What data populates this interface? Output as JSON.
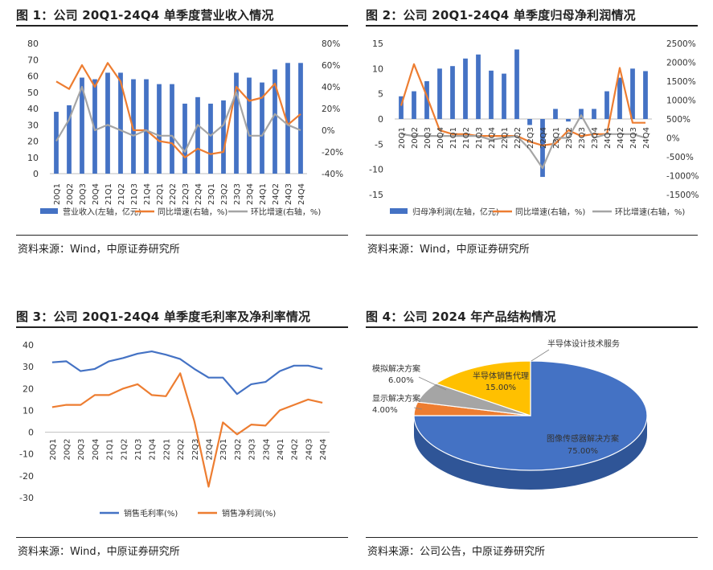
{
  "colors": {
    "blue": "#4472C4",
    "orange": "#ED7D31",
    "gray": "#A5A5A5",
    "yellow": "#FFC000"
  },
  "source_wind": "资料来源：Wind，中原证券研究所",
  "source_announce": "资料来源：公司公告，中原证券研究所",
  "chart_data": [
    {
      "type": "bar",
      "title": "图 1：公司 20Q1-24Q4 单季度营业收入情况",
      "categories": [
        "20Q1",
        "20Q2",
        "20Q3",
        "20Q4",
        "21Q1",
        "21Q2",
        "21Q3",
        "21Q4",
        "22Q1",
        "22Q2",
        "22Q3",
        "22Q4",
        "23Q1",
        "23Q2",
        "23Q3",
        "23Q4",
        "24Q1",
        "24Q2",
        "24Q3",
        "24Q4"
      ],
      "y_ticks": [
        "0",
        "10",
        "20",
        "30",
        "40",
        "50",
        "60",
        "70",
        "80"
      ],
      "y2_ticks": [
        "-40%",
        "-20%",
        "0%",
        "20%",
        "40%",
        "60%",
        "80%"
      ],
      "ylim": [
        0,
        80
      ],
      "y2lim": [
        -40,
        80
      ],
      "series": [
        {
          "name": "营业收入(左轴，亿元)",
          "axis": "left",
          "kind": "bar",
          "values": [
            38,
            42,
            59,
            58,
            62,
            62,
            58,
            58,
            55,
            55,
            43,
            47,
            43,
            45,
            62,
            59,
            56,
            64,
            68,
            68
          ]
        },
        {
          "name": "同比增速(右轴，%)",
          "axis": "right",
          "kind": "line",
          "values": [
            45,
            38,
            60,
            40,
            62,
            45,
            0,
            0,
            -10,
            -12,
            -25,
            -17,
            -22,
            -20,
            40,
            27,
            30,
            43,
            5,
            15
          ]
        },
        {
          "name": "环比增速(右轴，%)",
          "axis": "right",
          "kind": "line",
          "values": [
            -10,
            10,
            40,
            0,
            5,
            0,
            -5,
            0,
            -5,
            -5,
            -20,
            5,
            -5,
            5,
            35,
            -5,
            -5,
            15,
            5,
            0
          ]
        }
      ]
    },
    {
      "type": "bar",
      "title": "图 2：公司 20Q1-24Q4 单季度归母净利润情况",
      "categories": [
        "20Q1",
        "20Q2",
        "20Q3",
        "20Q4",
        "21Q1",
        "21Q2",
        "21Q3",
        "21Q4",
        "22Q1",
        "22Q2",
        "22Q3",
        "22Q4",
        "23Q1",
        "23Q2",
        "23Q3",
        "23Q4",
        "24Q1",
        "24Q2",
        "24Q3",
        "24Q4"
      ],
      "y_ticks": [
        "-15",
        "-10",
        "-5",
        "0",
        "5",
        "10",
        "15"
      ],
      "y2_ticks": [
        "-1500%",
        "-1000%",
        "-500%",
        "0%",
        "500%",
        "1000%",
        "1500%",
        "2000%",
        "2500%"
      ],
      "ylim": [
        -15,
        15
      ],
      "y2lim": [
        -1500,
        2500
      ],
      "series": [
        {
          "name": "归母净利润(左轴，亿元)",
          "axis": "left",
          "kind": "bar",
          "values": [
            4.5,
            5.5,
            7.5,
            10,
            10.5,
            12,
            12.8,
            9.6,
            9,
            13.8,
            -1.2,
            -11.5,
            2,
            -0.5,
            2,
            2,
            5.5,
            8.2,
            10,
            9.5
          ]
        },
        {
          "name": "同比增速(右轴，%)",
          "axis": "right",
          "kind": "line",
          "values": [
            850,
            1950,
            1100,
            200,
            100,
            100,
            50,
            50,
            50,
            50,
            -100,
            -200,
            -150,
            200,
            50,
            100,
            100,
            1850,
            400,
            400
          ]
        },
        {
          "name": "环比增速(右轴，%)",
          "axis": "right",
          "kind": "line",
          "values": [
            100,
            50,
            50,
            50,
            50,
            50,
            50,
            -50,
            0,
            50,
            -300,
            -800,
            0,
            0,
            600,
            0,
            100,
            100,
            100,
            0
          ]
        }
      ]
    },
    {
      "type": "line",
      "title": "图 3：公司 20Q1-24Q4 单季度毛利率及净利率情况",
      "categories": [
        "20Q1",
        "20Q2",
        "20Q3",
        "20Q4",
        "21Q1",
        "21Q2",
        "21Q3",
        "21Q4",
        "22Q1",
        "22Q2",
        "22Q3",
        "22Q4",
        "23Q1",
        "23Q2",
        "23Q3",
        "23Q4",
        "24Q1",
        "24Q2",
        "24Q3",
        "24Q4"
      ],
      "y_ticks": [
        "-30",
        "-20",
        "-10",
        "0",
        "10",
        "20",
        "30",
        "40"
      ],
      "ylim": [
        -30,
        40
      ],
      "series": [
        {
          "name": "销售毛利率(%)",
          "values": [
            32,
            32.5,
            28,
            29,
            32.5,
            34,
            36,
            37,
            35.5,
            33.5,
            29,
            25,
            25,
            17.5,
            22,
            23,
            28,
            30.5,
            30.5,
            29
          ]
        },
        {
          "name": "销售净利润(%)",
          "values": [
            11.5,
            12.5,
            12.5,
            17,
            17,
            20,
            22,
            17,
            16.5,
            27,
            5,
            -25,
            4.5,
            -1,
            3.5,
            3,
            10,
            12.5,
            15,
            13.5
          ]
        }
      ]
    },
    {
      "type": "pie",
      "title": "图 4：公司 2024 年产品结构情况",
      "slices": [
        {
          "label": "图像传感器解决方案，75.00%",
          "value": 75
        },
        {
          "label": "显示解决方案，4.00%",
          "value": 4
        },
        {
          "label": "模拟解决方案，6.00%",
          "value": 6
        },
        {
          "label": "半导体销售代理，15.00%",
          "value": 15
        },
        {
          "label": "半导体设计技术服务",
          "value": 0
        }
      ]
    }
  ]
}
